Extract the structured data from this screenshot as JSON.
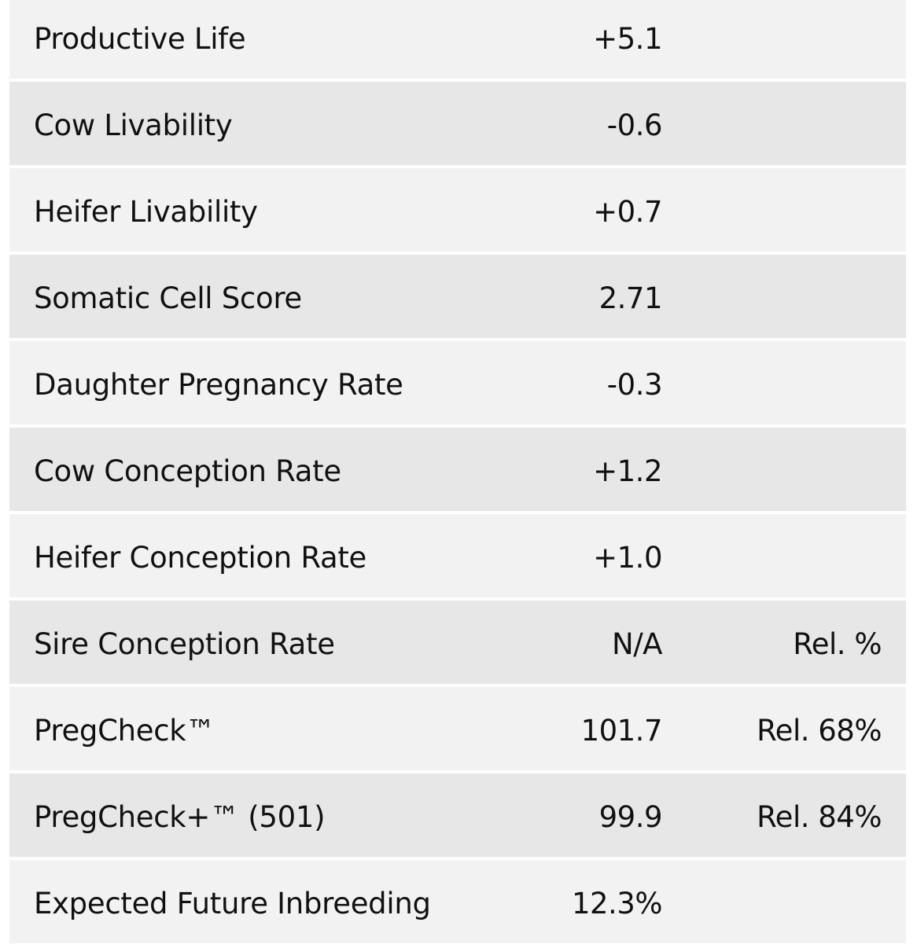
{
  "rows": [
    {
      "label": "Productive Life",
      "value": "+5.1",
      "rel": ""
    },
    {
      "label": "Cow Livability",
      "value": "-0.6",
      "rel": ""
    },
    {
      "label": "Heifer Livability",
      "value": "+0.7",
      "rel": ""
    },
    {
      "label": "Somatic Cell Score",
      "value": "2.71",
      "rel": ""
    },
    {
      "label": "Daughter Pregnancy Rate",
      "value": "-0.3",
      "rel": ""
    },
    {
      "label": "Cow Conception Rate",
      "value": "+1.2",
      "rel": ""
    },
    {
      "label": "Heifer Conception Rate",
      "value": "+1.0",
      "rel": ""
    },
    {
      "label": "Sire Conception Rate",
      "value": "N/A",
      "rel": "Rel. %"
    },
    {
      "label": "PregCheck™",
      "value": "101.7",
      "rel": "Rel. 68%"
    },
    {
      "label": "PregCheck+™ (501)",
      "value": "99.9",
      "rel": "Rel. 84%"
    },
    {
      "label": "Expected Future Inbreeding",
      "value": "12.3%",
      "rel": ""
    }
  ],
  "colors": {
    "row_light": "#f2f2f2",
    "row_dark": "#e7e7e7",
    "text": "#111111"
  }
}
